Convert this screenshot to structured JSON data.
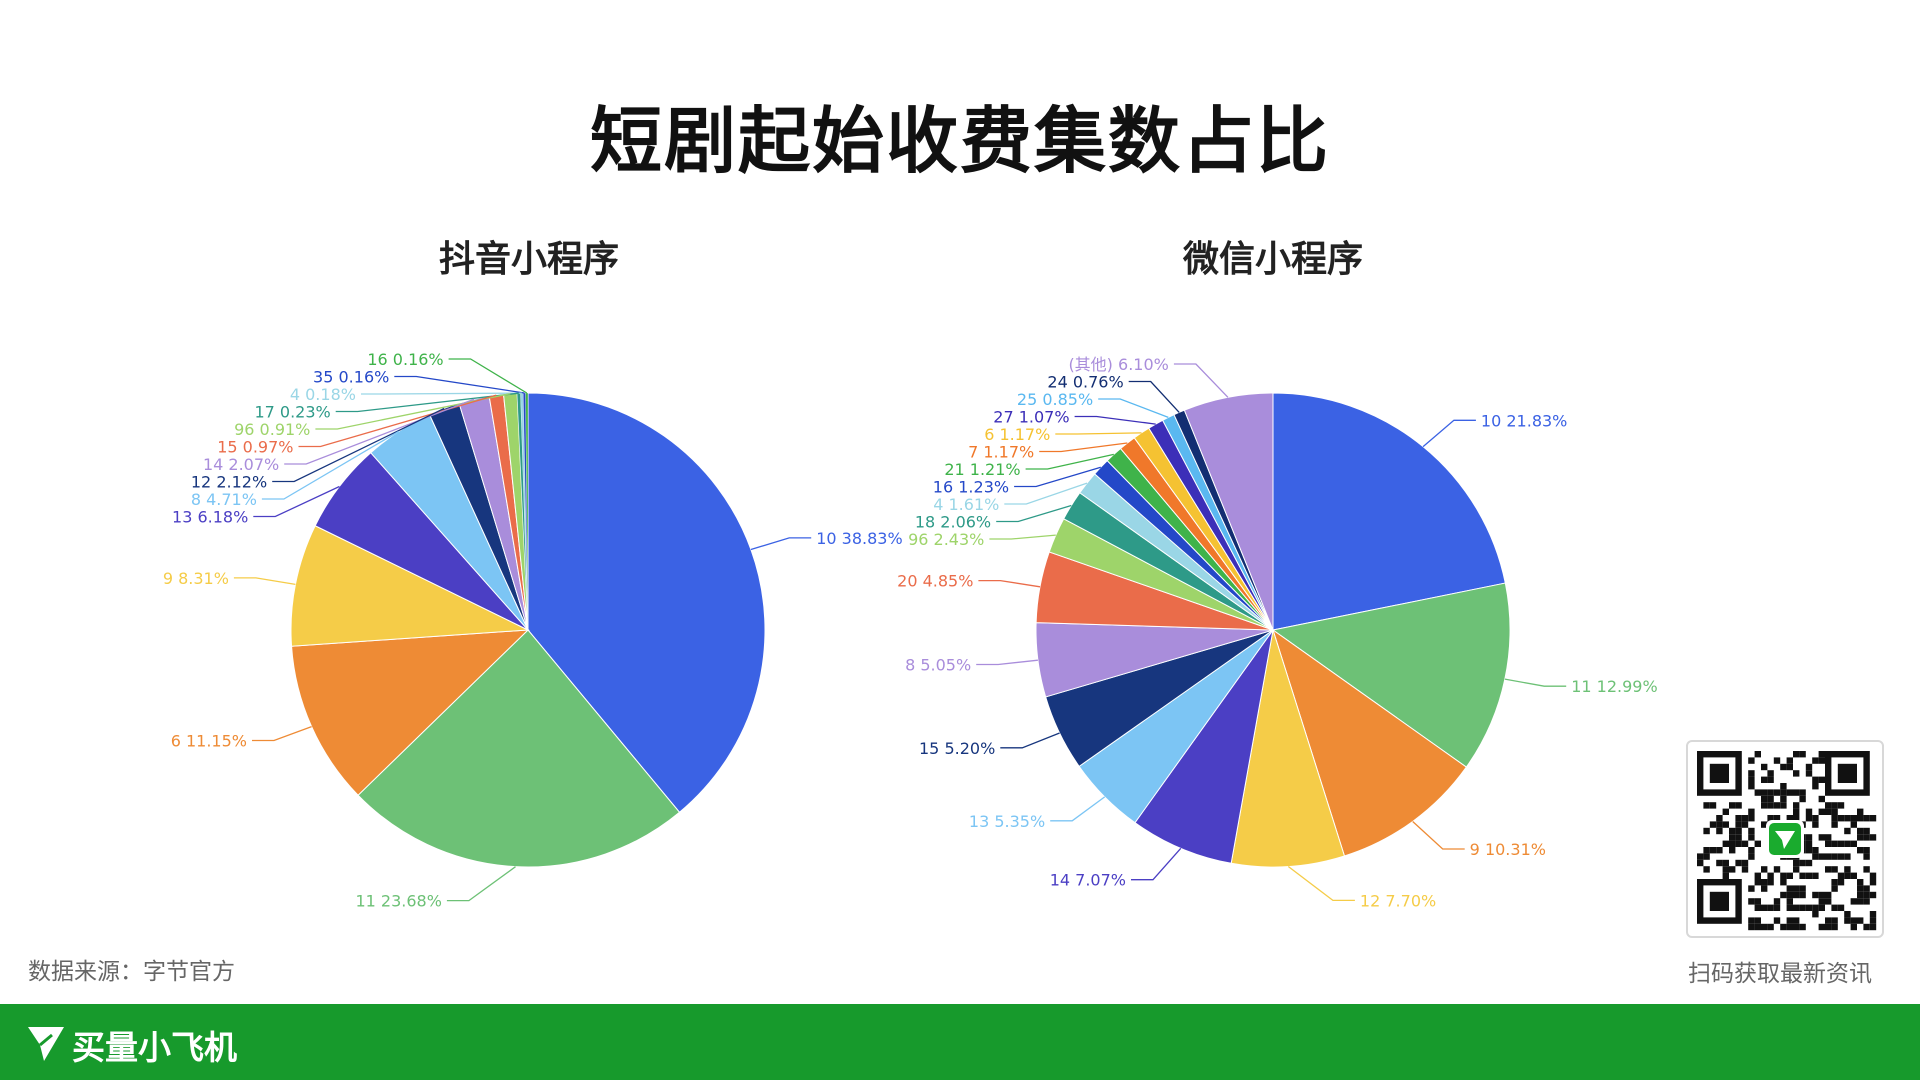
{
  "page": {
    "title": "短剧起始收费集数占比",
    "source": "数据来源：字节官方",
    "qr_caption": "扫码获取最新资讯",
    "brand": "买量小飞机",
    "footer_color": "#179a2c"
  },
  "chart_data": [
    {
      "type": "pie",
      "title": "抖音小程序",
      "slices": [
        {
          "label": "10",
          "value": 38.83,
          "percent": "38.83%",
          "color": "#3b62e4"
        },
        {
          "label": "11",
          "value": 23.68,
          "percent": "23.68%",
          "color": "#6dc176"
        },
        {
          "label": "6",
          "value": 11.15,
          "percent": "11.15%",
          "color": "#ee8b35"
        },
        {
          "label": "9",
          "value": 8.31,
          "percent": "8.31%",
          "color": "#f5cc48"
        },
        {
          "label": "13",
          "value": 6.18,
          "percent": "6.18%",
          "color": "#4b3fc4"
        },
        {
          "label": "8",
          "value": 4.71,
          "percent": "4.71%",
          "color": "#7cc5f4"
        },
        {
          "label": "12",
          "value": 2.12,
          "percent": "2.12%",
          "color": "#17367e"
        },
        {
          "label": "14",
          "value": 2.07,
          "percent": "2.07%",
          "color": "#a98ddb"
        },
        {
          "label": "15",
          "value": 0.97,
          "percent": "0.97%",
          "color": "#ea6c4a"
        },
        {
          "label": "96",
          "value": 0.91,
          "percent": "0.91%",
          "color": "#9ed46a"
        },
        {
          "label": "17",
          "value": 0.23,
          "percent": "0.23%",
          "color": "#2e9a88"
        },
        {
          "label": "4",
          "value": 0.18,
          "percent": "0.18%",
          "color": "#9ad6e6"
        },
        {
          "label": "35",
          "value": 0.16,
          "percent": "0.16%",
          "color": "#2448c8"
        },
        {
          "label": "16",
          "value": 0.16,
          "percent": "0.16%",
          "color": "#3fb34a"
        }
      ]
    },
    {
      "type": "pie",
      "title": "微信小程序",
      "slices": [
        {
          "label": "10",
          "value": 21.83,
          "percent": "21.83%",
          "color": "#3b62e4"
        },
        {
          "label": "11",
          "value": 12.99,
          "percent": "12.99%",
          "color": "#6dc176"
        },
        {
          "label": "9",
          "value": 10.31,
          "percent": "10.31%",
          "color": "#ee8b35"
        },
        {
          "label": "12",
          "value": 7.7,
          "percent": "7.70%",
          "color": "#f5cc48"
        },
        {
          "label": "14",
          "value": 7.07,
          "percent": "7.07%",
          "color": "#4b3fc4"
        },
        {
          "label": "13",
          "value": 5.35,
          "percent": "5.35%",
          "color": "#7cc5f4"
        },
        {
          "label": "15",
          "value": 5.2,
          "percent": "5.20%",
          "color": "#17367e"
        },
        {
          "label": "8",
          "value": 5.05,
          "percent": "5.05%",
          "color": "#a98ddb"
        },
        {
          "label": "20",
          "value": 4.85,
          "percent": "4.85%",
          "color": "#ea6c4a"
        },
        {
          "label": "96",
          "value": 2.43,
          "percent": "2.43%",
          "color": "#9ed46a"
        },
        {
          "label": "18",
          "value": 2.06,
          "percent": "2.06%",
          "color": "#2e9a88"
        },
        {
          "label": "4",
          "value": 1.61,
          "percent": "1.61%",
          "color": "#9ad6e6"
        },
        {
          "label": "16",
          "value": 1.23,
          "percent": "1.23%",
          "color": "#2448c8"
        },
        {
          "label": "21",
          "value": 1.21,
          "percent": "1.21%",
          "color": "#3fb34a"
        },
        {
          "label": "7",
          "value": 1.17,
          "percent": "1.17%",
          "color": "#f0782a"
        },
        {
          "label": "6",
          "value": 1.17,
          "percent": "1.17%",
          "color": "#f5c232"
        },
        {
          "label": "27",
          "value": 1.07,
          "percent": "1.07%",
          "color": "#3c2fb8"
        },
        {
          "label": "25",
          "value": 0.85,
          "percent": "0.85%",
          "color": "#5ab8f0"
        },
        {
          "label": "24",
          "value": 0.76,
          "percent": "0.76%",
          "color": "#132e72"
        },
        {
          "label": "(其他)",
          "value": 6.1,
          "percent": "6.10%",
          "color": "#a98ddb"
        }
      ]
    }
  ]
}
